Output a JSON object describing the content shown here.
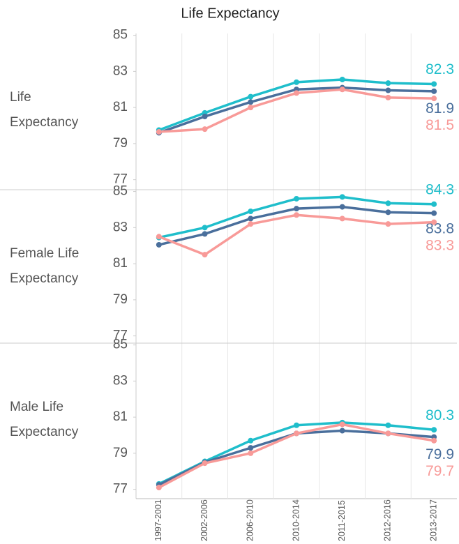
{
  "chart_data": {
    "type": "line",
    "title": "Life Expectancy",
    "categories": [
      "1997-2001",
      "2002-2006",
      "2006-2010",
      "2010-2014",
      "2011-2015",
      "2012-2016",
      "2013-2017"
    ],
    "ylim": [
      76.6,
      85.1
    ],
    "yticks": [
      77,
      79,
      81,
      83,
      85
    ],
    "grid": false,
    "panels": [
      {
        "label": "Life Expectancy",
        "series": [
          {
            "color": "#1fbecb",
            "values": [
              79.75,
              80.7,
              81.6,
              82.4,
              82.55,
              82.35,
              82.3
            ]
          },
          {
            "color": "#4a6f9c",
            "values": [
              79.6,
              80.5,
              81.3,
              82.0,
              82.1,
              81.95,
              81.9
            ]
          },
          {
            "color": "#f89a98",
            "values": [
              79.65,
              79.8,
              81.0,
              81.8,
              82.0,
              81.55,
              81.5
            ]
          }
        ]
      },
      {
        "label": "Female Life Expectancy",
        "series": [
          {
            "color": "#1fbecb",
            "values": [
              82.45,
              83.0,
              83.9,
              84.6,
              84.7,
              84.35,
              84.3
            ]
          },
          {
            "color": "#4a6f9c",
            "values": [
              82.05,
              82.65,
              83.5,
              84.05,
              84.15,
              83.85,
              83.8
            ]
          },
          {
            "color": "#f89a98",
            "values": [
              82.5,
              81.5,
              83.2,
              83.7,
              83.5,
              83.2,
              83.3
            ]
          }
        ]
      },
      {
        "label": "Male Life Expectancy",
        "series": [
          {
            "color": "#1fbecb",
            "values": [
              77.3,
              78.55,
              79.7,
              80.55,
              80.7,
              80.55,
              80.3
            ]
          },
          {
            "color": "#4a6f9c",
            "values": [
              77.25,
              78.5,
              79.3,
              80.1,
              80.25,
              80.1,
              79.9
            ]
          },
          {
            "color": "#f89a98",
            "values": [
              77.1,
              78.45,
              79.0,
              80.1,
              80.6,
              80.1,
              79.7
            ]
          }
        ]
      }
    ]
  }
}
